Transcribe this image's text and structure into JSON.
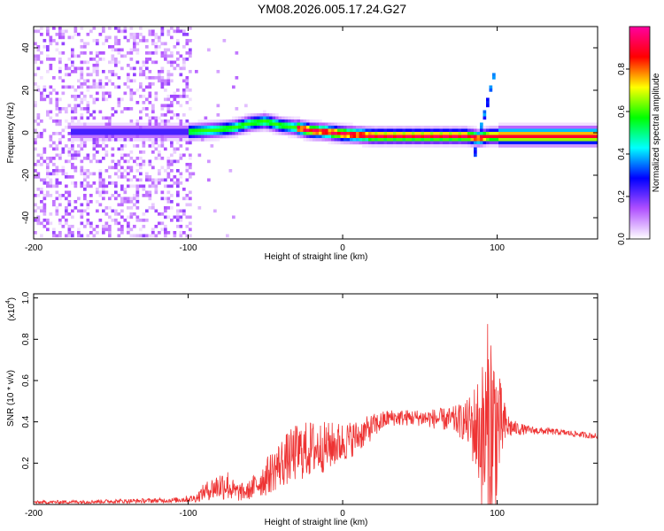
{
  "title": "YM08.2026.005.17.24.G27",
  "chart_data": [
    {
      "type": "heatmap",
      "xlabel": "Height of straight line (km)",
      "ylabel": "Frequency (Hz)",
      "xlim": [
        -200,
        165
      ],
      "ylim": [
        -50,
        50
      ],
      "xticks": [
        -200,
        -100,
        0,
        100
      ],
      "xtick_labels": [
        "-200",
        "-100",
        "0",
        "100"
      ],
      "yticks": [
        -40,
        -20,
        0,
        20,
        40
      ],
      "ytick_labels": [
        "-40",
        "-20",
        "0",
        "20",
        "40"
      ],
      "ridge": {
        "x": [
          -170,
          -150,
          -130,
          -110,
          -100,
          -90,
          -80,
          -70,
          -60,
          -50,
          -40,
          -30,
          -20,
          -10,
          0,
          20,
          40,
          60,
          80,
          88,
          95,
          110,
          130,
          165
        ],
        "freq": [
          0,
          0,
          0,
          0,
          0,
          0.5,
          1,
          2,
          4,
          5,
          3,
          2,
          0.5,
          0,
          -1,
          -2,
          -2,
          -2,
          -2,
          -3,
          -2,
          -2,
          -2,
          -2
        ]
      },
      "noise_region_x": [
        -200,
        -97
      ],
      "colorbar": {
        "label": "Normalized spectral amplitude",
        "range": [
          0,
          1
        ],
        "ticks": [
          0.0,
          0.2,
          0.4,
          0.6,
          0.8
        ],
        "tick_labels": [
          "0.0",
          "0.2",
          "0.4",
          "0.6",
          "0.8"
        ],
        "colors": [
          "#ffffff",
          "#b050ff",
          "#0000ff",
          "#00ffff",
          "#00ff00",
          "#ffff00",
          "#ff0000",
          "#ff00a0"
        ]
      }
    },
    {
      "type": "line",
      "xlabel": "Height of straight line (km)",
      "ylabel": "SNR (10 * v/v)",
      "y_scale_label": "(x10",
      "y_scale_exp": "4",
      "y_scale_close": ")",
      "xlim": [
        -200,
        165
      ],
      "ylim": [
        0,
        1.02
      ],
      "xticks": [
        -200,
        -100,
        0,
        100
      ],
      "xtick_labels": [
        "-200",
        "-100",
        "0",
        "100"
      ],
      "yticks": [
        0.2,
        0.4,
        0.6,
        0.8,
        1.0
      ],
      "ytick_labels": [
        "0.2",
        "0.4",
        "0.6",
        "0.8",
        "1.0"
      ],
      "color": "#ee3333",
      "envelope": {
        "x": [
          -200,
          -150,
          -110,
          -95,
          -90,
          -80,
          -75,
          -70,
          -62,
          -50,
          -40,
          -30,
          -20,
          -10,
          0,
          10,
          20,
          30,
          50,
          70,
          80,
          84,
          88,
          92,
          95,
          97,
          99,
          102,
          106,
          110,
          120,
          140,
          165
        ],
        "base": [
          0.01,
          0.015,
          0.02,
          0.03,
          0.06,
          0.09,
          0.1,
          0.06,
          0.06,
          0.13,
          0.2,
          0.25,
          0.27,
          0.28,
          0.3,
          0.33,
          0.38,
          0.42,
          0.42,
          0.41,
          0.4,
          0.38,
          0.36,
          0.3,
          0.28,
          0.3,
          0.36,
          0.38,
          0.38,
          0.37,
          0.36,
          0.35,
          0.33
        ],
        "amp": [
          0.008,
          0.01,
          0.012,
          0.02,
          0.04,
          0.07,
          0.08,
          0.05,
          0.04,
          0.09,
          0.12,
          0.14,
          0.14,
          0.12,
          0.1,
          0.08,
          0.06,
          0.04,
          0.04,
          0.06,
          0.1,
          0.18,
          0.28,
          0.45,
          0.7,
          0.62,
          0.45,
          0.22,
          0.08,
          0.04,
          0.02,
          0.015,
          0.015
        ]
      }
    }
  ]
}
